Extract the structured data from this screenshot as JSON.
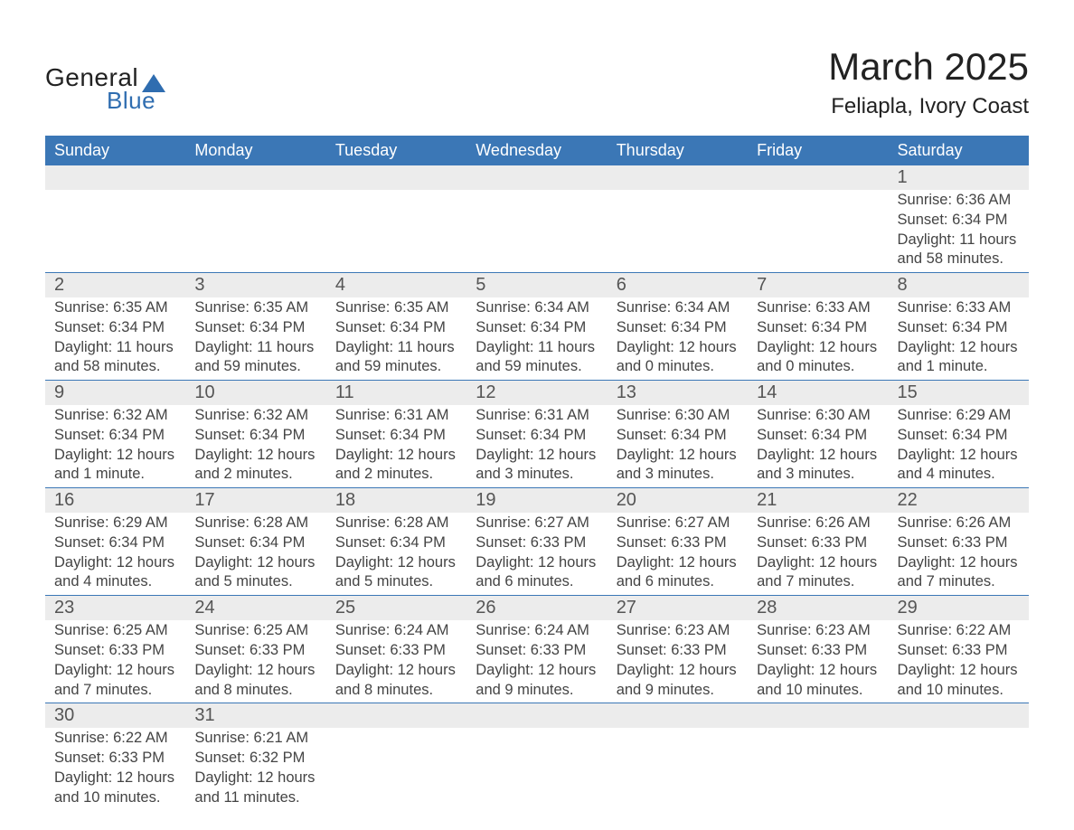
{
  "logo": {
    "text_general": "General",
    "text_blue": "Blue",
    "sail_color": "#2f6db0"
  },
  "title": "March 2025",
  "location": "Feliapla, Ivory Coast",
  "colors": {
    "header_bg": "#3b77b6",
    "header_text": "#ffffff",
    "daynum_bg": "#ececec",
    "row_divider": "#3b77b6",
    "body_text": "#444444",
    "title_text": "#222222"
  },
  "fonts": {
    "title_size": 42,
    "location_size": 24,
    "header_size": 18,
    "daynum_size": 20,
    "cell_size": 16.5
  },
  "weekdays": [
    "Sunday",
    "Monday",
    "Tuesday",
    "Wednesday",
    "Thursday",
    "Friday",
    "Saturday"
  ],
  "weeks": [
    {
      "days": [
        null,
        null,
        null,
        null,
        null,
        null,
        {
          "n": "1",
          "sunrise": "Sunrise: 6:36 AM",
          "sunset": "Sunset: 6:34 PM",
          "daylight": "Daylight: 11 hours and 58 minutes."
        }
      ]
    },
    {
      "days": [
        {
          "n": "2",
          "sunrise": "Sunrise: 6:35 AM",
          "sunset": "Sunset: 6:34 PM",
          "daylight": "Daylight: 11 hours and 58 minutes."
        },
        {
          "n": "3",
          "sunrise": "Sunrise: 6:35 AM",
          "sunset": "Sunset: 6:34 PM",
          "daylight": "Daylight: 11 hours and 59 minutes."
        },
        {
          "n": "4",
          "sunrise": "Sunrise: 6:35 AM",
          "sunset": "Sunset: 6:34 PM",
          "daylight": "Daylight: 11 hours and 59 minutes."
        },
        {
          "n": "5",
          "sunrise": "Sunrise: 6:34 AM",
          "sunset": "Sunset: 6:34 PM",
          "daylight": "Daylight: 11 hours and 59 minutes."
        },
        {
          "n": "6",
          "sunrise": "Sunrise: 6:34 AM",
          "sunset": "Sunset: 6:34 PM",
          "daylight": "Daylight: 12 hours and 0 minutes."
        },
        {
          "n": "7",
          "sunrise": "Sunrise: 6:33 AM",
          "sunset": "Sunset: 6:34 PM",
          "daylight": "Daylight: 12 hours and 0 minutes."
        },
        {
          "n": "8",
          "sunrise": "Sunrise: 6:33 AM",
          "sunset": "Sunset: 6:34 PM",
          "daylight": "Daylight: 12 hours and 1 minute."
        }
      ]
    },
    {
      "days": [
        {
          "n": "9",
          "sunrise": "Sunrise: 6:32 AM",
          "sunset": "Sunset: 6:34 PM",
          "daylight": "Daylight: 12 hours and 1 minute."
        },
        {
          "n": "10",
          "sunrise": "Sunrise: 6:32 AM",
          "sunset": "Sunset: 6:34 PM",
          "daylight": "Daylight: 12 hours and 2 minutes."
        },
        {
          "n": "11",
          "sunrise": "Sunrise: 6:31 AM",
          "sunset": "Sunset: 6:34 PM",
          "daylight": "Daylight: 12 hours and 2 minutes."
        },
        {
          "n": "12",
          "sunrise": "Sunrise: 6:31 AM",
          "sunset": "Sunset: 6:34 PM",
          "daylight": "Daylight: 12 hours and 3 minutes."
        },
        {
          "n": "13",
          "sunrise": "Sunrise: 6:30 AM",
          "sunset": "Sunset: 6:34 PM",
          "daylight": "Daylight: 12 hours and 3 minutes."
        },
        {
          "n": "14",
          "sunrise": "Sunrise: 6:30 AM",
          "sunset": "Sunset: 6:34 PM",
          "daylight": "Daylight: 12 hours and 3 minutes."
        },
        {
          "n": "15",
          "sunrise": "Sunrise: 6:29 AM",
          "sunset": "Sunset: 6:34 PM",
          "daylight": "Daylight: 12 hours and 4 minutes."
        }
      ]
    },
    {
      "days": [
        {
          "n": "16",
          "sunrise": "Sunrise: 6:29 AM",
          "sunset": "Sunset: 6:34 PM",
          "daylight": "Daylight: 12 hours and 4 minutes."
        },
        {
          "n": "17",
          "sunrise": "Sunrise: 6:28 AM",
          "sunset": "Sunset: 6:34 PM",
          "daylight": "Daylight: 12 hours and 5 minutes."
        },
        {
          "n": "18",
          "sunrise": "Sunrise: 6:28 AM",
          "sunset": "Sunset: 6:34 PM",
          "daylight": "Daylight: 12 hours and 5 minutes."
        },
        {
          "n": "19",
          "sunrise": "Sunrise: 6:27 AM",
          "sunset": "Sunset: 6:33 PM",
          "daylight": "Daylight: 12 hours and 6 minutes."
        },
        {
          "n": "20",
          "sunrise": "Sunrise: 6:27 AM",
          "sunset": "Sunset: 6:33 PM",
          "daylight": "Daylight: 12 hours and 6 minutes."
        },
        {
          "n": "21",
          "sunrise": "Sunrise: 6:26 AM",
          "sunset": "Sunset: 6:33 PM",
          "daylight": "Daylight: 12 hours and 7 minutes."
        },
        {
          "n": "22",
          "sunrise": "Sunrise: 6:26 AM",
          "sunset": "Sunset: 6:33 PM",
          "daylight": "Daylight: 12 hours and 7 minutes."
        }
      ]
    },
    {
      "days": [
        {
          "n": "23",
          "sunrise": "Sunrise: 6:25 AM",
          "sunset": "Sunset: 6:33 PM",
          "daylight": "Daylight: 12 hours and 7 minutes."
        },
        {
          "n": "24",
          "sunrise": "Sunrise: 6:25 AM",
          "sunset": "Sunset: 6:33 PM",
          "daylight": "Daylight: 12 hours and 8 minutes."
        },
        {
          "n": "25",
          "sunrise": "Sunrise: 6:24 AM",
          "sunset": "Sunset: 6:33 PM",
          "daylight": "Daylight: 12 hours and 8 minutes."
        },
        {
          "n": "26",
          "sunrise": "Sunrise: 6:24 AM",
          "sunset": "Sunset: 6:33 PM",
          "daylight": "Daylight: 12 hours and 9 minutes."
        },
        {
          "n": "27",
          "sunrise": "Sunrise: 6:23 AM",
          "sunset": "Sunset: 6:33 PM",
          "daylight": "Daylight: 12 hours and 9 minutes."
        },
        {
          "n": "28",
          "sunrise": "Sunrise: 6:23 AM",
          "sunset": "Sunset: 6:33 PM",
          "daylight": "Daylight: 12 hours and 10 minutes."
        },
        {
          "n": "29",
          "sunrise": "Sunrise: 6:22 AM",
          "sunset": "Sunset: 6:33 PM",
          "daylight": "Daylight: 12 hours and 10 minutes."
        }
      ]
    },
    {
      "days": [
        {
          "n": "30",
          "sunrise": "Sunrise: 6:22 AM",
          "sunset": "Sunset: 6:33 PM",
          "daylight": "Daylight: 12 hours and 10 minutes."
        },
        {
          "n": "31",
          "sunrise": "Sunrise: 6:21 AM",
          "sunset": "Sunset: 6:32 PM",
          "daylight": "Daylight: 12 hours and 11 minutes."
        },
        null,
        null,
        null,
        null,
        null
      ]
    }
  ]
}
